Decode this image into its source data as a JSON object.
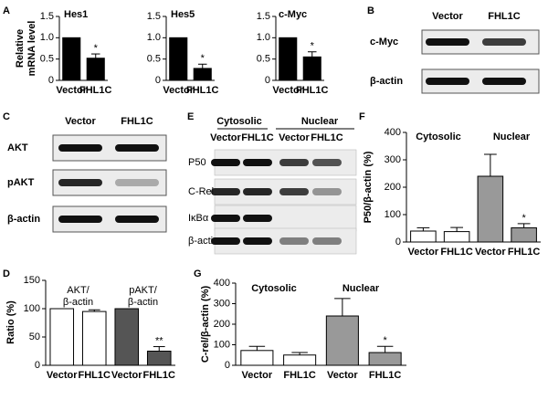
{
  "chart_data": [
    {
      "type": "bar",
      "panel": "A",
      "title": "Hes1",
      "ylabel": [
        "Relative",
        "mRNA level"
      ],
      "categories": [
        "Vector",
        "FHL1C"
      ],
      "values": [
        1.0,
        0.52
      ],
      "errors": [
        null,
        0.1
      ],
      "colors": [
        "#000000",
        "#000000"
      ],
      "ylim": [
        0,
        1.5
      ],
      "yticks": [
        0,
        0.5,
        {
          "value": 1.0,
          "label": "1.0"
        },
        1.5
      ],
      "annotations": [
        "*"
      ]
    },
    {
      "type": "bar",
      "title": "Hes5",
      "categories": [
        "Vector",
        "FHL1C"
      ],
      "values": [
        1.0,
        0.28
      ],
      "errors": [
        null,
        0.1
      ],
      "colors": [
        "#000000",
        "#000000"
      ],
      "ylim": [
        0,
        1.5
      ],
      "yticks": [
        0,
        0.5,
        {
          "value": 1.0,
          "label": "1.0"
        },
        1.5
      ],
      "annotations": [
        "*"
      ]
    },
    {
      "type": "bar",
      "title": "c-Myc",
      "categories": [
        "Vector",
        "FHL1C"
      ],
      "values": [
        1.0,
        0.55
      ],
      "errors": [
        null,
        0.12
      ],
      "colors": [
        "#000000",
        "#000000"
      ],
      "ylim": [
        0,
        1.5
      ],
      "yticks": [
        0,
        0.5,
        {
          "value": 1.0,
          "label": "1.0"
        },
        1.5
      ],
      "annotations": [
        "*"
      ]
    },
    {
      "type": "bar",
      "panel": "D",
      "ylabel": "Ratio (%)",
      "group_labels": [
        [
          "AKT/",
          "β-actin"
        ],
        [
          "pAKT/",
          "β-actin"
        ]
      ],
      "categories": [
        "Vector",
        "FHL1C",
        "Vector",
        "FHL1C"
      ],
      "values": [
        100,
        95,
        100,
        25
      ],
      "errors": [
        null,
        3,
        null,
        8
      ],
      "colors": [
        "#ffffff",
        "#ffffff",
        "#555555",
        "#555555"
      ],
      "ylim": [
        0,
        150
      ],
      "yticks": [
        0,
        50,
        100,
        150
      ],
      "annotations": [
        "**"
      ]
    },
    {
      "type": "bar",
      "panel": "F",
      "ylabel": "P50/β-actin (%)",
      "group_labels": [
        [
          "Cytosolic"
        ],
        [
          "Nuclear"
        ]
      ],
      "categories": [
        "Vector",
        "FHL1C",
        "Vector",
        "FHL1C"
      ],
      "values": [
        40,
        38,
        240,
        52
      ],
      "errors": [
        12,
        15,
        80,
        15
      ],
      "colors": [
        "#ffffff",
        "#ffffff",
        "#999999",
        "#999999"
      ],
      "ylim": [
        0,
        400
      ],
      "yticks": [
        0,
        100,
        200,
        300,
        400
      ],
      "annotations": [
        "*"
      ]
    },
    {
      "type": "bar",
      "panel": "G",
      "ylabel": "C-rel/β-actin (%)",
      "group_labels": [
        [
          "Cytosolic"
        ],
        [
          "Nuclear"
        ]
      ],
      "categories": [
        "Vector",
        "FHL1C",
        "Vector",
        "FHL1C"
      ],
      "values": [
        72,
        50,
        240,
        62
      ],
      "errors": [
        20,
        12,
        85,
        30
      ],
      "colors": [
        "#ffffff",
        "#ffffff",
        "#999999",
        "#999999"
      ],
      "ylim": [
        0,
        400
      ],
      "yticks": [
        0,
        100,
        200,
        300,
        400
      ],
      "annotations": [
        "*"
      ]
    }
  ],
  "blots": [
    {
      "panel": "B",
      "columns": [
        "Vector",
        "FHL1C"
      ],
      "rows": [
        "c-Myc",
        "β-actin"
      ]
    },
    {
      "panel": "C",
      "columns": [
        "Vector",
        "FHL1C"
      ],
      "rows": [
        "AKT",
        "pAKT",
        "β-actin"
      ]
    },
    {
      "panel": "E",
      "groups": [
        "Cytosolic",
        "Nuclear"
      ],
      "columns": [
        "Vector",
        "FHL1C",
        "Vector",
        "FHL1C"
      ],
      "rows": [
        "P50",
        "C-Rel",
        "IκBα",
        "β-actin"
      ]
    }
  ]
}
